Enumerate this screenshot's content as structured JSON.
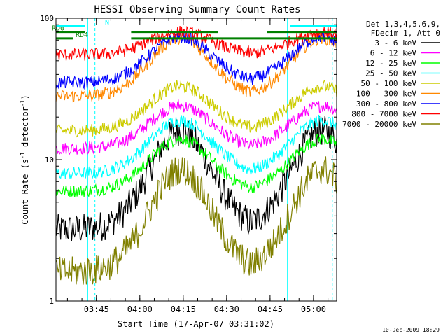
{
  "chart_data": {
    "type": "line",
    "title": "HESSI Observing Summary Count Rates",
    "xlabel": "Start Time (17-Apr-07 03:31:02)",
    "ylabel_main": "Count Rate (s",
    "ylabel_sup": "-1",
    "ylabel_end": " detector",
    "ylabel_close": ")",
    "yscale": "log",
    "xlim": [
      "03:31:02",
      "05:08:00"
    ],
    "ylim": [
      1,
      100
    ],
    "y_ticks": [
      "1",
      "10",
      "100"
    ],
    "x_ticks": [
      "03:45",
      "04:00",
      "04:15",
      "04:30",
      "04:45",
      "05:00"
    ],
    "legend_header": [
      "Det 1,3,4,5,6,9,",
      "FDecim 1, Att 0"
    ],
    "series": [
      {
        "name": "3 - 6 keV",
        "color": "#000000",
        "peak": 16,
        "low": 3.2
      },
      {
        "name": "6 - 12 keV",
        "color": "#ff00ff",
        "peak": 24,
        "low": 12
      },
      {
        "name": "12 - 25 keV",
        "color": "#00ff00",
        "peak": 14,
        "low": 6
      },
      {
        "name": "25 - 50 keV",
        "color": "#00ffff",
        "peak": 19,
        "low": 8
      },
      {
        "name": "50 - 100 keV",
        "color": "#cccc00",
        "peak": 33,
        "low": 16
      },
      {
        "name": "100 - 300 keV",
        "color": "#ff8800",
        "peak": 72,
        "low": 28
      },
      {
        "name": "300 - 800 keV",
        "color": "#0000ff",
        "peak": 74,
        "low": 35
      },
      {
        "name": "800 - 7000 keV",
        "color": "#ff0000",
        "peak": 80,
        "low": 55
      },
      {
        "name": "7000 - 20000 keV",
        "color": "#808000",
        "peak": 8.5,
        "low": 1.6
      }
    ],
    "flags": [
      {
        "label": "RD0",
        "color": "#008000",
        "value": 80,
        "intervals": [
          [
            "03:31:02",
            "03:41:00"
          ],
          [
            "03:57:00",
            "04:27:00"
          ],
          [
            "04:44:00",
            "05:08:00"
          ]
        ]
      },
      {
        "label": "RD4",
        "color": "#008000",
        "value": 72,
        "intervals": [
          [
            "03:31:02",
            "03:37:00"
          ],
          [
            "03:57:00",
            "05:08:00"
          ]
        ]
      },
      {
        "label": "N",
        "color": "#00ffff",
        "value": 88,
        "intervals": [
          [
            "03:31:02",
            "03:41:00"
          ],
          [
            "04:52:00",
            "05:08:00"
          ]
        ]
      }
    ],
    "night_intervals": [
      [
        "03:31:02",
        "03:42:00"
      ],
      [
        "04:51:00",
        "05:08:00"
      ]
    ],
    "saa_lines": [
      "03:44:30",
      "05:06:30"
    ],
    "footer_date": "10-Dec-2009 18:29"
  }
}
